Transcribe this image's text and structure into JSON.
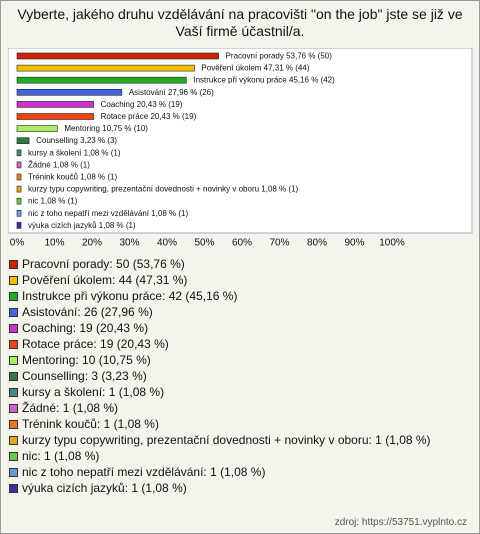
{
  "chart_data": {
    "type": "bar",
    "orientation": "horizontal",
    "title": "Vyberte, jakého druhu vzdělávání na pracovišti \"on the job\" jste se již ve Vaší firmě účastnil/a.",
    "categories": [
      "Pracovní porady",
      "Pověření úkolem",
      "Instrukce při výkonu práce",
      "Asistování",
      "Coaching",
      "Rotace práce",
      "Mentoring",
      "Counselling",
      "kursy a školení",
      "Žádné",
      "Trénink koučů",
      "kurzy typu copywriting, prezentační dovednosti + novinky v oboru",
      "nic",
      "nic z toho nepatří mezi vzdělávání",
      "výuka cizích jazyků"
    ],
    "values": [
      53.76,
      47.31,
      45.16,
      27.96,
      20.43,
      20.43,
      10.75,
      3.23,
      1.08,
      1.08,
      1.08,
      1.08,
      1.08,
      1.08,
      1.08
    ],
    "value_labels": [
      "53,76 % (50)",
      "47,31 % (44)",
      "45,16 % (42)",
      "27,96 % (26)",
      "20,43 % (19)",
      "20,43 % (19)",
      "10,75 % (10)",
      "3,23 % (3)",
      "1,08 % (1)",
      "1,08 % (1)",
      "1,08 % (1)",
      "1,08 % (1)",
      "1,08 % (1)",
      "1,08 % (1)",
      "1,08 % (1)"
    ],
    "colors": [
      "#cc2200",
      "#f0c000",
      "#22aa22",
      "#4466dd",
      "#cc33cc",
      "#ee4411",
      "#aaee66",
      "#337744",
      "#448888",
      "#cc66cc",
      "#ee7722",
      "#ddaa22",
      "#66cc44",
      "#6699dd",
      "#333399"
    ],
    "xlim": [
      0,
      100
    ],
    "xticks": [
      {
        "value": 0,
        "label": "0%"
      },
      {
        "value": 10,
        "label": "10%"
      },
      {
        "value": 20,
        "label": "20%"
      },
      {
        "value": 30,
        "label": "30%"
      },
      {
        "value": 40,
        "label": "40%"
      },
      {
        "value": 50,
        "label": "50%"
      },
      {
        "value": 60,
        "label": "60%"
      },
      {
        "value": 70,
        "label": "70%"
      },
      {
        "value": 80,
        "label": "80%"
      },
      {
        "value": 90,
        "label": "90%"
      },
      {
        "value": 100,
        "label": "100%"
      }
    ],
    "legend": [
      "Pracovní porady: 50 (53,76 %)",
      "Pověření úkolem: 44 (47,31 %)",
      "Instrukce při výkonu práce: 42 (45,16 %)",
      "Asistování: 26 (27,96 %)",
      "Coaching: 19 (20,43 %)",
      "Rotace práce: 19 (20,43 %)",
      "Mentoring: 10 (10,75 %)",
      "Counselling: 3 (3,23 %)",
      "kursy a školení: 1 (1,08 %)",
      "Žádné: 1 (1,08 %)",
      "Trénink koučů: 1 (1,08 %)",
      "kurzy typu copywriting, prezentační dovednosti + novinky v oboru: 1 (1,08 %)",
      "nic: 1 (1,08 %)",
      "nic z toho nepatří mezi vzdělávání: 1 (1,08 %)",
      "výuka cizích jazyků: 1 (1,08 %)"
    ],
    "source": "zdroj: https://53751.vyplnto.cz"
  }
}
